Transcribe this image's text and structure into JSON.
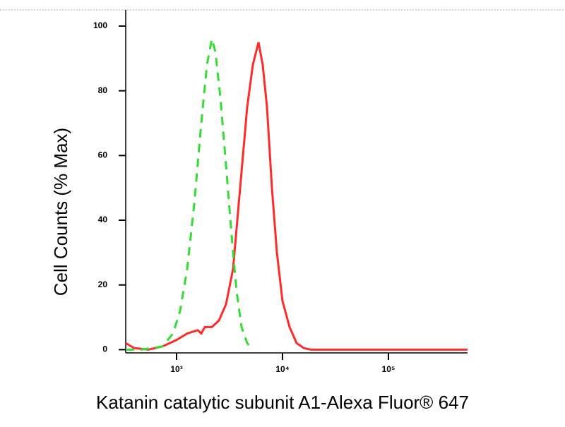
{
  "chart_data": {
    "type": "line",
    "log_x": true,
    "xlabel": "Katanin catalytic subunit A1-Alexa Fluor® 647",
    "ylabel": "Cell Counts (% Max)",
    "xlim": [
      331,
      558000
    ],
    "ylim": [
      -1,
      105
    ],
    "xticks": [
      {
        "value": 1000,
        "label": "10³"
      },
      {
        "value": 10000,
        "label": "10⁴"
      },
      {
        "value": 100000,
        "label": "10⁵"
      }
    ],
    "yticks": [
      0,
      20,
      40,
      60,
      80,
      100
    ],
    "series": [
      {
        "color": "#ff2a2a",
        "style": "solid",
        "x": [
          331,
          398,
          541,
          736,
          1000,
          1259,
          1585,
          1711,
          1848,
          2154,
          2512,
          2929,
          3415,
          3981,
          4642,
          5248,
          5934,
          6506,
          7134,
          7943,
          8851,
          10000,
          11659,
          13594,
          15849,
          18478,
          46416,
          215443,
          558000
        ],
        "values": [
          2,
          0.5,
          0,
          1,
          3,
          5,
          6,
          5,
          7,
          7,
          9,
          14,
          25,
          50,
          75,
          88,
          95,
          88,
          75,
          50,
          30,
          15,
          7,
          2,
          0.5,
          0,
          0,
          0,
          0
        ]
      },
      {
        "color": "#33dd33",
        "style": "dashed",
        "x": [
          331,
          464,
          736,
          926,
          1080,
          1259,
          1468,
          1711,
          1934,
          2154,
          2326,
          2590,
          2929,
          3311,
          3687,
          4104,
          4642,
          5248
        ],
        "values": [
          0,
          0,
          1,
          5,
          12,
          25,
          45,
          70,
          88,
          96,
          92,
          78,
          57,
          35,
          18,
          7,
          2,
          0
        ]
      }
    ]
  }
}
